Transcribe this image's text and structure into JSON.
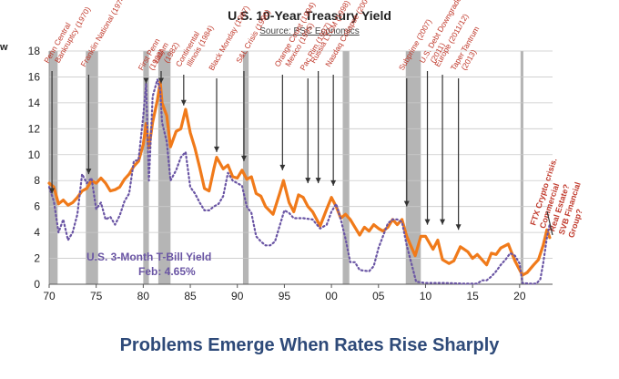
{
  "edge_fragment": "w",
  "caption": "Problems Emerge When Rates Rise Sharply",
  "colors": {
    "ten_year": "#f07a1a",
    "tbill": "#6a55a4",
    "recession": "#b5b5b5",
    "annotation": "#c0392b",
    "caption": "#2e4a79"
  },
  "chart_data": {
    "type": "line",
    "title": "U.S. 10-Year Treasury Yield",
    "subtitle": "Source: PSC Economics",
    "xlabel": "",
    "ylabel": "",
    "xlim": [
      1970,
      2023.5
    ],
    "ylim": [
      0,
      18
    ],
    "yticks": [
      0,
      2,
      4,
      6,
      8,
      10,
      12,
      14,
      16,
      18
    ],
    "xticks": [
      {
        "value": 1970,
        "label": "70"
      },
      {
        "value": 1975,
        "label": "75"
      },
      {
        "value": 1980,
        "label": "80"
      },
      {
        "value": 1985,
        "label": "85"
      },
      {
        "value": 1990,
        "label": "90"
      },
      {
        "value": 1995,
        "label": "95"
      },
      {
        "value": 2000,
        "label": "00"
      },
      {
        "value": 2005,
        "label": "05"
      },
      {
        "value": 2010,
        "label": "10"
      },
      {
        "value": 2015,
        "label": "15"
      },
      {
        "value": 2020,
        "label": "20"
      }
    ],
    "grid": true,
    "recessions": [
      [
        1970.0,
        1970.9
      ],
      [
        1973.9,
        1975.2
      ],
      [
        1980.0,
        1980.6
      ],
      [
        1981.6,
        1982.9
      ],
      [
        1990.6,
        1991.2
      ],
      [
        2001.2,
        2001.9
      ],
      [
        2007.9,
        2009.5
      ],
      [
        2020.1,
        2020.4
      ]
    ],
    "series": [
      {
        "name": "U.S. 10-Year Treasury Yield",
        "style": "solid",
        "x": [
          1970.0,
          1970.5,
          1971.0,
          1971.5,
          1972.0,
          1972.5,
          1973.0,
          1973.5,
          1974.0,
          1974.5,
          1975.0,
          1975.5,
          1976.0,
          1976.5,
          1977.0,
          1977.5,
          1978.0,
          1978.5,
          1979.0,
          1979.5,
          1980.0,
          1980.3,
          1980.6,
          1981.0,
          1981.5,
          1981.8,
          1982.0,
          1982.5,
          1982.9,
          1983.5,
          1984.0,
          1984.5,
          1985.0,
          1985.5,
          1986.0,
          1986.5,
          1987.0,
          1987.5,
          1987.8,
          1988.5,
          1989.0,
          1989.5,
          1990.0,
          1990.5,
          1991.0,
          1991.5,
          1992.0,
          1992.5,
          1993.0,
          1993.8,
          1994.5,
          1994.9,
          1995.5,
          1996.0,
          1996.5,
          1997.0,
          1997.5,
          1998.0,
          1998.8,
          1999.5,
          2000.0,
          2000.5,
          2001.0,
          2001.5,
          2002.0,
          2002.5,
          2003.0,
          2003.5,
          2004.0,
          2004.5,
          2005.0,
          2005.5,
          2006.0,
          2006.5,
          2007.0,
          2007.5,
          2008.0,
          2008.9,
          2009.5,
          2010.0,
          2010.8,
          2011.3,
          2011.8,
          2012.5,
          2013.0,
          2013.7,
          2014.5,
          2015.0,
          2015.5,
          2016.5,
          2017.0,
          2017.5,
          2018.0,
          2018.8,
          2019.5,
          2020.3,
          2020.8,
          2021.5,
          2022.0,
          2022.5,
          2022.9,
          2023.2
        ],
        "y": [
          7.8,
          7.5,
          6.2,
          6.5,
          6.1,
          6.3,
          6.7,
          7.2,
          7.4,
          8.0,
          7.8,
          8.2,
          7.8,
          7.2,
          7.3,
          7.5,
          8.1,
          8.5,
          9.1,
          9.5,
          10.8,
          12.4,
          10.5,
          12.5,
          14.2,
          15.6,
          14.0,
          13.0,
          10.6,
          11.8,
          12.0,
          13.5,
          11.7,
          10.5,
          9.0,
          7.4,
          7.2,
          8.9,
          9.8,
          8.9,
          9.2,
          8.3,
          8.2,
          8.8,
          8.1,
          8.3,
          7.0,
          6.8,
          6.0,
          5.4,
          7.0,
          8.0,
          6.3,
          5.6,
          6.9,
          6.7,
          6.0,
          5.6,
          4.5,
          5.8,
          6.7,
          6.0,
          5.1,
          5.4,
          5.0,
          4.4,
          3.8,
          4.4,
          4.1,
          4.6,
          4.3,
          4.1,
          4.4,
          5.0,
          4.6,
          5.0,
          3.7,
          2.2,
          3.7,
          3.7,
          2.7,
          3.4,
          1.9,
          1.6,
          1.8,
          2.9,
          2.5,
          2.0,
          2.3,
          1.5,
          2.4,
          2.3,
          2.8,
          3.1,
          1.8,
          0.7,
          0.9,
          1.5,
          1.9,
          3.0,
          4.2,
          3.6
        ]
      },
      {
        "name": "U.S. 3-Month T-Bill Yield",
        "style": "dotted",
        "x": [
          1970.0,
          1970.5,
          1971.0,
          1971.5,
          1972.0,
          1972.5,
          1973.0,
          1973.5,
          1974.0,
          1974.5,
          1975.0,
          1975.5,
          1976.0,
          1976.5,
          1977.0,
          1977.5,
          1978.0,
          1978.5,
          1979.0,
          1979.5,
          1980.0,
          1980.3,
          1980.6,
          1981.0,
          1981.5,
          1981.8,
          1982.0,
          1982.5,
          1982.9,
          1983.5,
          1984.0,
          1984.5,
          1985.0,
          1985.5,
          1986.0,
          1986.5,
          1987.0,
          1987.5,
          1988.0,
          1988.5,
          1989.0,
          1989.5,
          1990.0,
          1990.5,
          1991.0,
          1991.5,
          1992.0,
          1992.5,
          1993.0,
          1993.5,
          1994.0,
          1994.5,
          1995.0,
          1995.5,
          1996.0,
          1997.0,
          1998.0,
          1998.8,
          1999.5,
          2000.0,
          2000.5,
          2001.0,
          2001.5,
          2002.0,
          2002.5,
          2003.0,
          2004.0,
          2004.5,
          2005.0,
          2006.0,
          2006.5,
          2007.0,
          2007.5,
          2008.0,
          2008.5,
          2009.0,
          2010.0,
          2012.0,
          2014.0,
          2015.5,
          2016.0,
          2016.5,
          2017.0,
          2017.5,
          2018.0,
          2018.5,
          2019.0,
          2019.5,
          2020.0,
          2020.3,
          2021.0,
          2021.8,
          2022.2,
          2022.5,
          2022.9,
          2023.2
        ],
        "y": [
          7.5,
          6.4,
          4.0,
          5.0,
          3.4,
          4.0,
          5.4,
          8.5,
          7.8,
          8.2,
          5.8,
          6.3,
          5.0,
          5.2,
          4.6,
          5.3,
          6.4,
          7.0,
          9.5,
          9.6,
          13.0,
          15.5,
          8.0,
          14.5,
          15.8,
          15.0,
          12.5,
          11.0,
          8.0,
          8.8,
          9.8,
          10.2,
          7.5,
          7.0,
          6.3,
          5.7,
          5.7,
          6.0,
          6.2,
          6.8,
          8.6,
          8.0,
          7.8,
          7.6,
          6.0,
          5.5,
          3.7,
          3.3,
          3.0,
          3.0,
          3.3,
          4.5,
          5.7,
          5.5,
          5.1,
          5.1,
          5.0,
          4.3,
          4.6,
          5.6,
          6.2,
          5.0,
          3.5,
          1.7,
          1.7,
          1.1,
          1.0,
          1.4,
          2.8,
          4.7,
          5.0,
          5.0,
          4.8,
          3.0,
          1.6,
          0.2,
          0.1,
          0.1,
          0.05,
          0.05,
          0.3,
          0.3,
          0.6,
          1.0,
          1.5,
          1.9,
          2.4,
          2.2,
          1.6,
          0.1,
          0.05,
          0.05,
          0.4,
          1.6,
          3.6,
          4.65
        ]
      }
    ],
    "series_label": "U.S. 3-Month T-Bill Yield",
    "series_value_label": "Feb: 4.65%",
    "annotations": [
      {
        "text": "Penn Central",
        "sub": "Bankruptcy (1970)",
        "x": 1970.3,
        "arrow_to": 7.0
      },
      {
        "text": "Franklin National (1974)",
        "sub": "",
        "x": 1974.2,
        "arrow_to": 8.5
      },
      {
        "text": "First Penn",
        "sub": "(1980)",
        "x": 1980.3,
        "arrow_to": 15.5
      },
      {
        "text": "LatAm",
        "sub": "(1982)",
        "x": 1981.9,
        "arrow_to": 15.5
      },
      {
        "text": "Continental",
        "sub": "Illinois (1984)",
        "x": 1984.3,
        "arrow_to": 13.8
      },
      {
        "text": "Black Monday (1987)",
        "sub": "",
        "x": 1987.8,
        "arrow_to": 10.2
      },
      {
        "text": "S&L Crisis (1990)",
        "sub": "",
        "x": 1990.7,
        "arrow_to": 9.5
      },
      {
        "text": "Orange Count (1994)",
        "sub": "Mexico (1995)",
        "x": 1994.8,
        "arrow_to": 8.8
      },
      {
        "text": "Pac Rim (1997)",
        "sub": "",
        "x": 1997.5,
        "arrow_to": 7.8
      },
      {
        "text": "Russia LTCM (1998)",
        "sub": "",
        "x": 1998.6,
        "arrow_to": 7.8
      },
      {
        "text": "Nasdaq Collapse (2000)",
        "sub": "",
        "x": 2000.2,
        "arrow_to": 7.6
      },
      {
        "text": "Subprime (2007)",
        "sub": "",
        "x": 2008.0,
        "arrow_to": 6.0
      },
      {
        "text": "U.S. Debt Downgrade",
        "sub": "(2011)",
        "x": 2010.2,
        "arrow_to": 4.6
      },
      {
        "text": "Europe (2011/12)",
        "sub": "",
        "x": 2011.8,
        "arrow_to": 4.6
      },
      {
        "text": "Taper Tantrum",
        "sub": "(2013)",
        "x": 2013.5,
        "arrow_to": 4.2
      }
    ],
    "side_annotation": [
      "FTX Crypto crisis.",
      "Commercial",
      "Real Estate?",
      "SVB Financial",
      "Group?"
    ]
  }
}
